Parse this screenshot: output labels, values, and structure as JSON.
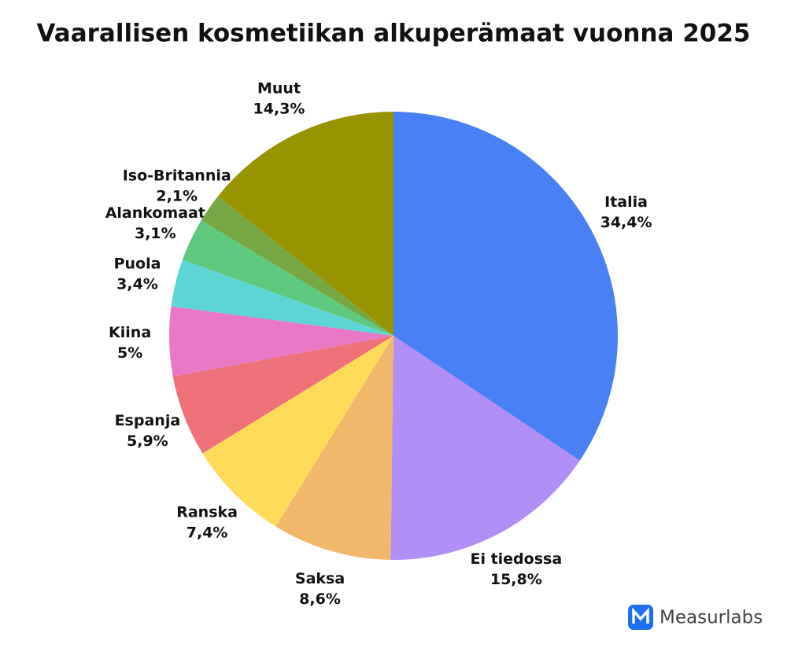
{
  "chart_data": {
    "type": "pie",
    "title": "Vaarallisen kosmetiikan alkuperämaat vuonna 2025",
    "categories": [
      "Italia",
      "Ei tiedossa",
      "Saksa",
      "Ranska",
      "Espanja",
      "Kiina",
      "Puola",
      "Alankomaat",
      "Iso-Britannia",
      "Muut"
    ],
    "values": [
      34.4,
      15.8,
      8.6,
      7.4,
      5.9,
      5,
      3.4,
      3.1,
      2.1,
      14.3
    ],
    "value_labels": [
      "34,4%",
      "15,8%",
      "8,6%",
      "7,4%",
      "5,9%",
      "5%",
      "3,4%",
      "3,1%",
      "2,1%",
      "14,3%"
    ],
    "colors": [
      "#4a80f5",
      "#b08ef5",
      "#f2b86c",
      "#fedc5a",
      "#ee7079",
      "#e878c5",
      "#5ed5d5",
      "#5ec97e",
      "#78a845",
      "#989400"
    ]
  },
  "brand": "Measurlabs"
}
